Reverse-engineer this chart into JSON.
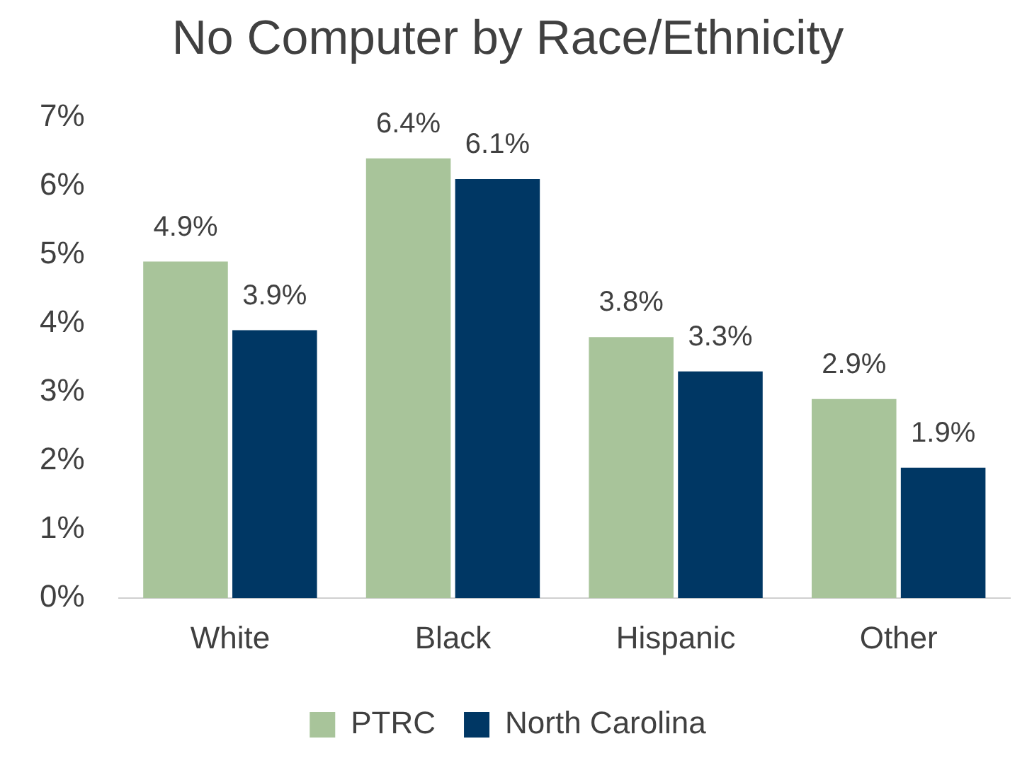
{
  "chart_data": {
    "type": "bar",
    "title": "No Computer by Race/Ethnicity",
    "categories": [
      "White",
      "Black",
      "Hispanic",
      "Other"
    ],
    "series": [
      {
        "name": "PTRC",
        "color": "#a8c49a",
        "values": [
          4.9,
          6.4,
          3.8,
          2.9
        ],
        "value_labels": [
          "4.9%",
          "6.4%",
          "3.8%",
          "2.9%"
        ]
      },
      {
        "name": "North Carolina",
        "color": "#003764",
        "values": [
          3.9,
          6.1,
          3.3,
          1.9
        ],
        "value_labels": [
          "3.9%",
          "6.1%",
          "3.3%",
          "1.9%"
        ]
      }
    ],
    "ylim": [
      0,
      7
    ],
    "yticks": [
      {
        "value": 0,
        "label": "0%"
      },
      {
        "value": 1,
        "label": "1%"
      },
      {
        "value": 2,
        "label": "2%"
      },
      {
        "value": 3,
        "label": "3%"
      },
      {
        "value": 4,
        "label": "4%"
      },
      {
        "value": 5,
        "label": "5%"
      },
      {
        "value": 6,
        "label": "6%"
      },
      {
        "value": 7,
        "label": "7%"
      }
    ],
    "grid": false,
    "legend": "bottom"
  }
}
